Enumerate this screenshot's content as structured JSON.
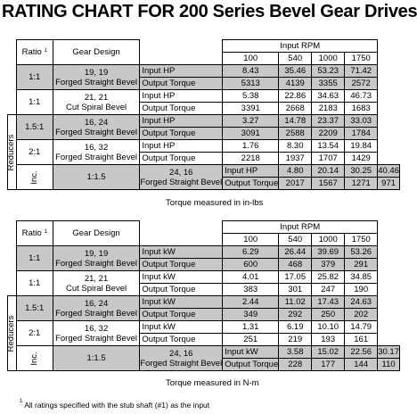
{
  "title": "RATING CHART FOR 200 Series Bevel Gear Drives",
  "headers": {
    "ratio": "Ratio",
    "ratio_sup": "1",
    "gear_design": "Gear Design",
    "input_rpm": "Input RPM"
  },
  "side_labels": {
    "reducers": "Reducers",
    "inc": "Inc."
  },
  "table1": {
    "rpm": [
      "100",
      "540",
      "1000",
      "1750"
    ],
    "rows": [
      {
        "ratio": "1:1",
        "teeth": "19, 19",
        "design": "Forged Straight Bevel",
        "p1": "Input HP",
        "v1": [
          "8.43",
          "35.46",
          "53.23",
          "71.42"
        ],
        "p2": "Output Torque",
        "v2": [
          "5313",
          "4139",
          "3355",
          "2572"
        ]
      },
      {
        "ratio": "1:1",
        "teeth": "21, 21",
        "design": "Cut Spiral Bevel",
        "p1": "Input HP",
        "v1": [
          "5.38",
          "22.86",
          "34.63",
          "46.73"
        ],
        "p2": "Output Torque",
        "v2": [
          "3391",
          "2668",
          "2183",
          "1683"
        ]
      },
      {
        "ratio": "1.5:1",
        "teeth": "16, 24",
        "design": "Forged Straight Bevel",
        "p1": "Input HP",
        "v1": [
          "3.27",
          "14.78",
          "23.37",
          "33.03"
        ],
        "p2": "Output Torque",
        "v2": [
          "3091",
          "2588",
          "2209",
          "1784"
        ]
      },
      {
        "ratio": "2:1",
        "teeth": "16, 32",
        "design": "Forged Straight Bevel",
        "p1": "Input HP",
        "v1": [
          "1.76",
          "8.30",
          "13.54",
          "19.84"
        ],
        "p2": "Output Torque",
        "v2": [
          "2218",
          "1937",
          "1707",
          "1429"
        ]
      },
      {
        "ratio": "1:1.5",
        "teeth": "24, 16",
        "design": "Forged Straight Bevel",
        "p1": "Input HP",
        "v1": [
          "4.80",
          "20.14",
          "30.25",
          "40.46"
        ],
        "p2": "Output Torque",
        "v2": [
          "2017",
          "1567",
          "1271",
          "971"
        ]
      }
    ],
    "caption": "Torque measured in in-lbs"
  },
  "table2": {
    "rpm": [
      "100",
      "540",
      "1000",
      "1750"
    ],
    "rows": [
      {
        "ratio": "1:1",
        "teeth": "19, 19",
        "design": "Forged Straight Bevel",
        "p1": "Input kW",
        "v1": [
          "6.29",
          "26.44",
          "39.69",
          "53.26"
        ],
        "p2": "Output Torque",
        "v2": [
          "600",
          "468",
          "379",
          "291"
        ]
      },
      {
        "ratio": "1:1",
        "teeth": "21, 21",
        "design": "Cut Spiral Bevel",
        "p1": "Input kW",
        "v1": [
          "4.01",
          "17.05",
          "25.82",
          "34.85"
        ],
        "p2": "Output Torque",
        "v2": [
          "383",
          "301",
          "247",
          "190"
        ]
      },
      {
        "ratio": "1.5:1",
        "teeth": "16, 24",
        "design": "Forged Straight Bevel",
        "p1": "Input kW",
        "v1": [
          "2.44",
          "11.02",
          "17.43",
          "24.63"
        ],
        "p2": "Output Torque",
        "v2": [
          "349",
          "292",
          "250",
          "202"
        ]
      },
      {
        "ratio": "2:1",
        "teeth": "16, 32",
        "design": "Forged Straight Bevel",
        "p1": "Input kW",
        "v1": [
          "1.31",
          "6.19",
          "10.10",
          "14.79"
        ],
        "p2": "Output Torque",
        "v2": [
          "251",
          "219",
          "193",
          "161"
        ]
      },
      {
        "ratio": "1:1.5",
        "teeth": "24, 16",
        "design": "Forged Straight Bevel",
        "p1": "Input kW",
        "v1": [
          "3.58",
          "15.02",
          "22.56",
          "30.17"
        ],
        "p2": "Output Torque",
        "v2": [
          "228",
          "177",
          "144",
          "110"
        ]
      }
    ],
    "caption": "Torque measured in N-m"
  },
  "footnote": {
    "sup": "1",
    "text": "All ratings specified with the stub shaft (#1) as the input"
  }
}
